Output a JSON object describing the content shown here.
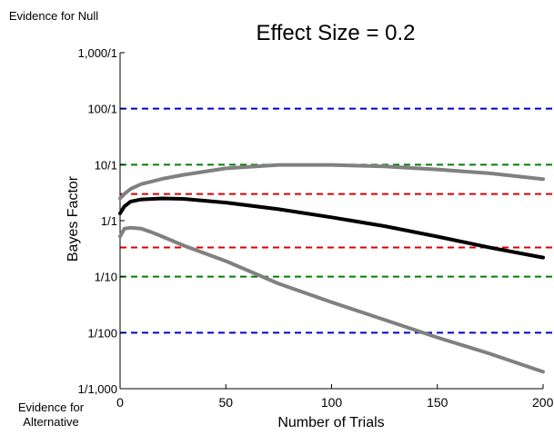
{
  "chart_data": {
    "type": "line",
    "title": "Effect Size = 0.2",
    "xlabel": "Number of Trials",
    "ylabel": "Bayes Factor",
    "xlim": [
      0,
      200
    ],
    "ylim": [
      0.001,
      1000
    ],
    "y_scale": "log",
    "x_ticks": [
      0,
      50,
      100,
      150,
      200
    ],
    "x_tick_labels": [
      "0",
      "50",
      "100",
      "150",
      "200"
    ],
    "y_ticks": [
      1000,
      100,
      10,
      1,
      0.1,
      0.01,
      0.001
    ],
    "y_tick_labels": [
      "1,000/1",
      "100/1",
      "10/1",
      "1/1",
      "1/10",
      "1/100",
      "1/1,000"
    ],
    "top_annotation": "Evidence for Null",
    "bottom_annotation": "Evidence for Alternative",
    "reference_lines": [
      {
        "y": 100,
        "color": "#0000cc"
      },
      {
        "y": 10,
        "color": "#008000"
      },
      {
        "y": 3,
        "color": "#dd0000"
      },
      {
        "y": 0.333,
        "color": "#dd0000"
      },
      {
        "y": 0.1,
        "color": "#008000"
      },
      {
        "y": 0.01,
        "color": "#0000cc"
      }
    ],
    "series": [
      {
        "color": "#808080",
        "x": [
          0,
          2,
          5,
          10,
          20,
          30,
          50,
          75,
          100,
          125,
          150,
          175,
          200
        ],
        "y": [
          2.5,
          3.0,
          3.7,
          4.5,
          5.6,
          6.6,
          8.6,
          9.9,
          9.9,
          9.3,
          8.2,
          7.0,
          5.5
        ]
      },
      {
        "color": "#000000",
        "x": [
          0,
          2,
          5,
          10,
          20,
          30,
          50,
          75,
          100,
          125,
          150,
          175,
          200
        ],
        "y": [
          1.35,
          1.8,
          2.2,
          2.4,
          2.5,
          2.45,
          2.1,
          1.6,
          1.15,
          0.8,
          0.52,
          0.33,
          0.22
        ]
      },
      {
        "color": "#808080",
        "x": [
          0,
          2,
          5,
          10,
          15,
          20,
          30,
          50,
          75,
          100,
          125,
          150,
          175,
          200
        ],
        "y": [
          0.52,
          0.72,
          0.75,
          0.72,
          0.62,
          0.52,
          0.36,
          0.19,
          0.075,
          0.035,
          0.017,
          0.0082,
          0.0042,
          0.002
        ]
      }
    ]
  }
}
